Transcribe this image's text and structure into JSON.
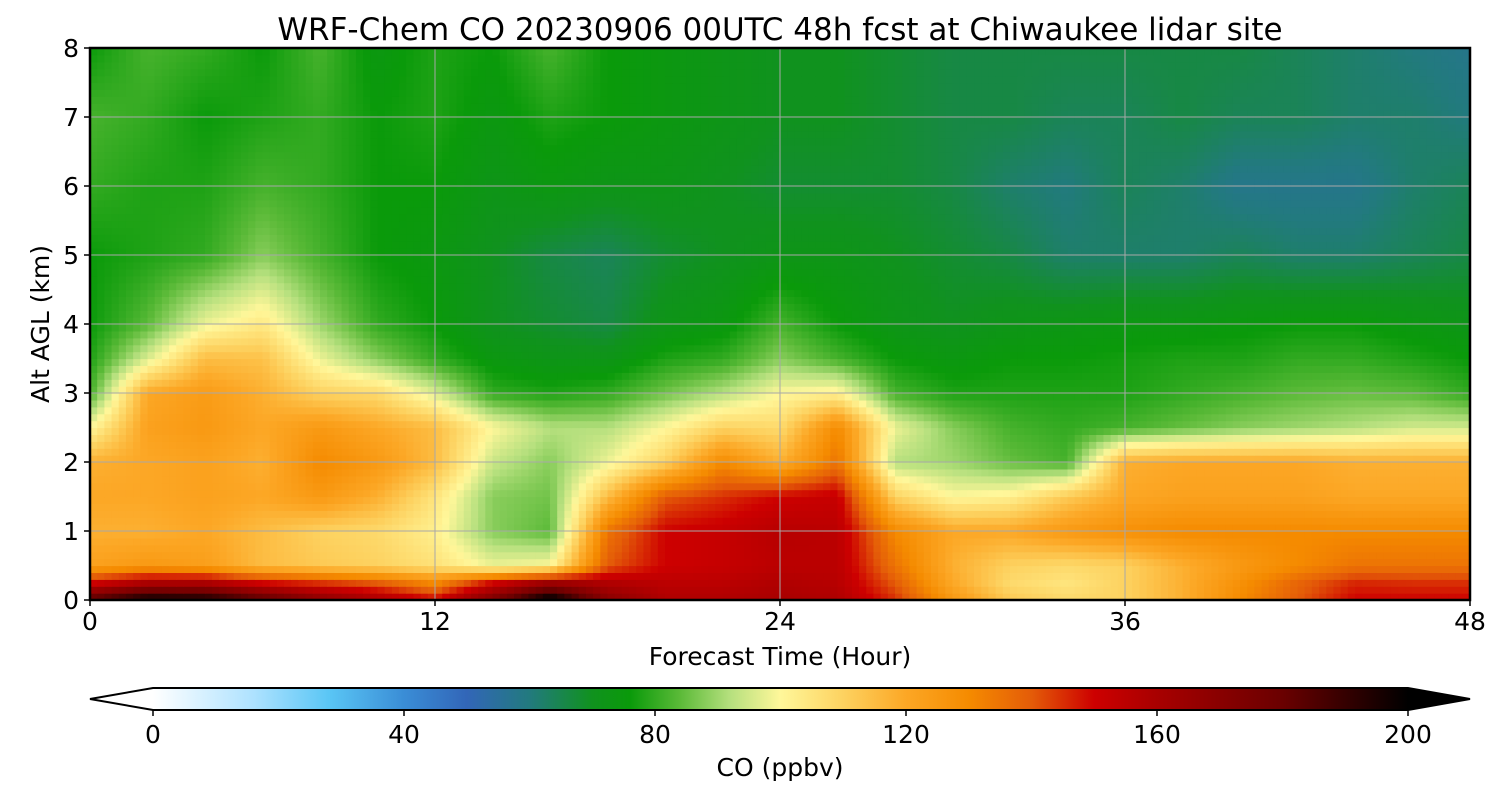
{
  "chart_data": {
    "type": "heatmap",
    "title": "WRF-Chem CO  20230906 00UTC 48h fcst at Chiwaukee lidar site",
    "xlabel": "Forecast Time (Hour)",
    "ylabel": "Alt AGL (km)",
    "xlim": [
      0,
      48
    ],
    "ylim": [
      0,
      8
    ],
    "xticks": [
      "0",
      "12",
      "24",
      "36",
      "48"
    ],
    "xtick_values": [
      0,
      12,
      24,
      36,
      48
    ],
    "yticks": [
      "0",
      "1",
      "2",
      "3",
      "4",
      "5",
      "6",
      "7",
      "8"
    ],
    "ytick_values": [
      0,
      1,
      2,
      3,
      4,
      5,
      6,
      7,
      8
    ],
    "grid": true,
    "x": [
      0,
      2,
      4,
      6,
      8,
      10,
      12,
      14,
      16,
      18,
      20,
      22,
      24,
      26,
      28,
      30,
      32,
      34,
      36,
      38,
      40,
      42,
      44,
      46,
      48
    ],
    "y": [
      0,
      0.25,
      0.5,
      1,
      1.5,
      2,
      2.5,
      3,
      3.5,
      4,
      5,
      6,
      7,
      8
    ],
    "values": [
      [
        185,
        200,
        198,
        185,
        170,
        160,
        150,
        175,
        205,
        170,
        158,
        158,
        160,
        158,
        145,
        125,
        112,
        108,
        110,
        118,
        130,
        140,
        150,
        150,
        150
      ],
      [
        150,
        160,
        160,
        150,
        145,
        140,
        130,
        150,
        165,
        158,
        155,
        155,
        158,
        156,
        140,
        120,
        108,
        105,
        110,
        118,
        128,
        138,
        146,
        145,
        145
      ],
      [
        122,
        125,
        123,
        115,
        112,
        110,
        106,
        98,
        100,
        140,
        150,
        152,
        155,
        155,
        135,
        118,
        110,
        108,
        110,
        118,
        125,
        130,
        135,
        135,
        135
      ],
      [
        118,
        118,
        120,
        115,
        110,
        108,
        102,
        88,
        84,
        135,
        150,
        152,
        156,
        155,
        130,
        120,
        120,
        125,
        128,
        130,
        130,
        130,
        130,
        130,
        130
      ],
      [
        120,
        120,
        122,
        120,
        125,
        118,
        105,
        88,
        86,
        115,
        140,
        145,
        150,
        152,
        110,
        100,
        102,
        112,
        120,
        122,
        122,
        122,
        120,
        120,
        120
      ],
      [
        118,
        120,
        122,
        118,
        130,
        125,
        115,
        94,
        88,
        98,
        110,
        130,
        118,
        135,
        92,
        90,
        85,
        82,
        118,
        120,
        120,
        120,
        118,
        118,
        118
      ],
      [
        100,
        122,
        125,
        120,
        125,
        120,
        115,
        100,
        92,
        92,
        100,
        110,
        108,
        130,
        98,
        88,
        82,
        80,
        82,
        85,
        88,
        90,
        92,
        95,
        95
      ],
      [
        82,
        120,
        124,
        118,
        110,
        108,
        96,
        80,
        78,
        80,
        86,
        92,
        100,
        102,
        82,
        78,
        78,
        78,
        78,
        80,
        82,
        84,
        85,
        84,
        80
      ],
      [
        78,
        96,
        115,
        114,
        98,
        88,
        80,
        74,
        72,
        72,
        78,
        80,
        88,
        82,
        76,
        74,
        76,
        76,
        77,
        78,
        78,
        80,
        80,
        78,
        76
      ],
      [
        76,
        84,
        98,
        104,
        90,
        80,
        76,
        70,
        68,
        66,
        72,
        74,
        82,
        76,
        72,
        70,
        72,
        73,
        74,
        74,
        75,
        76,
        76,
        74,
        72
      ],
      [
        76,
        78,
        80,
        88,
        82,
        76,
        74,
        70,
        66,
        64,
        68,
        70,
        72,
        72,
        70,
        68,
        66,
        62,
        62,
        62,
        64,
        62,
        62,
        64,
        66
      ],
      [
        80,
        78,
        78,
        82,
        80,
        76,
        76,
        72,
        74,
        72,
        72,
        70,
        68,
        68,
        68,
        66,
        62,
        60,
        64,
        62,
        58,
        58,
        58,
        62,
        64
      ],
      [
        82,
        80,
        76,
        78,
        80,
        76,
        78,
        74,
        78,
        76,
        74,
        72,
        70,
        70,
        68,
        66,
        66,
        64,
        64,
        66,
        64,
        64,
        62,
        62,
        60
      ],
      [
        76,
        82,
        80,
        76,
        82,
        74,
        78,
        76,
        82,
        76,
        74,
        72,
        70,
        70,
        68,
        66,
        66,
        66,
        66,
        66,
        66,
        64,
        62,
        60,
        58
      ]
    ],
    "colorbar": {
      "label": "CO  (ppbv)",
      "vmin": 0,
      "vmax": 200,
      "ticks": [
        "0",
        "40",
        "80",
        "120",
        "160",
        "200"
      ],
      "tick_values": [
        0,
        40,
        80,
        120,
        160,
        200
      ],
      "extend": "both",
      "color_stops": [
        [
          0,
          "#ffffff"
        ],
        [
          16,
          "#aee2ff"
        ],
        [
          28,
          "#5ac6f5"
        ],
        [
          40,
          "#3a8dd6"
        ],
        [
          50,
          "#3266b8"
        ],
        [
          60,
          "#227a7e"
        ],
        [
          70,
          "#10921e"
        ],
        [
          76,
          "#0a9a0a"
        ],
        [
          84,
          "#5bba38"
        ],
        [
          92,
          "#b6e07e"
        ],
        [
          100,
          "#fff79a"
        ],
        [
          110,
          "#fdd260"
        ],
        [
          120,
          "#fca725"
        ],
        [
          130,
          "#f58b00"
        ],
        [
          140,
          "#e45c08"
        ],
        [
          150,
          "#cd0000"
        ],
        [
          160,
          "#a80000"
        ],
        [
          180,
          "#6a0000"
        ],
        [
          200,
          "#000000"
        ]
      ]
    }
  }
}
